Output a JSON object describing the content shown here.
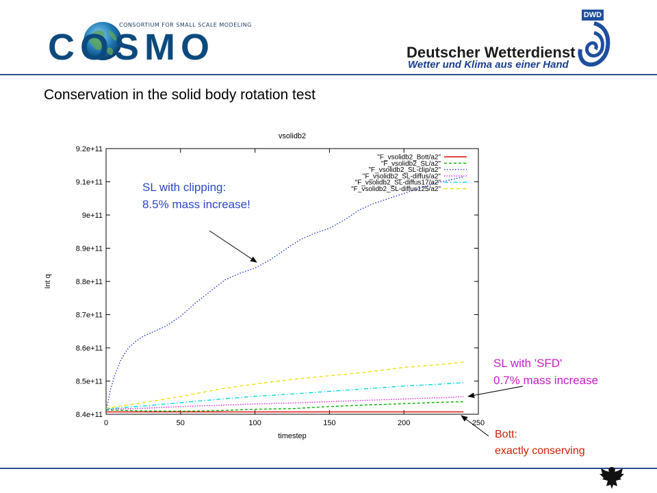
{
  "header": {
    "consortium_text": "CONSORTIUM FOR SMALL SCALE MODELING",
    "cosmo_text": "COSMO",
    "dwd_badge": "DWD",
    "dwd_name": "Deutscher Wetterdienst",
    "dwd_tagline": "Wetter und Klima aus einer Hand",
    "line_color": "#2a4b8d"
  },
  "slide": {
    "title": "Conservation in the solid body rotation test"
  },
  "annotations": {
    "clip_line1": "SL with clipping:",
    "clip_line2": "8.5% mass increase!",
    "sfd_line1": "SL with 'SFD'",
    "sfd_line2": "0.7% mass increase",
    "bott_line1": "Bott:",
    "bott_line2": "exactly conserving",
    "clip_color": "#2b45c4",
    "sfd_color": "#c51bc5",
    "bott_color": "#cc2200"
  },
  "chart_data": {
    "type": "line",
    "title": "vsolidb2",
    "xlabel": "timestep",
    "ylabel": "Int q",
    "xlim": [
      0,
      250
    ],
    "ylim": [
      840000000000,
      920000000000
    ],
    "xticks": [
      0,
      50,
      100,
      150,
      200,
      250
    ],
    "xtick_labels": [
      "0",
      "50",
      "100",
      "150",
      "200",
      "250"
    ],
    "yticks": [
      840000000000,
      850000000000,
      860000000000,
      870000000000,
      880000000000,
      890000000000,
      900000000000,
      910000000000,
      920000000000
    ],
    "ytick_labels": [
      "8.4e+11",
      "8.5e+11",
      "8.6e+11",
      "8.7e+11",
      "8.8e+11",
      "8.9e+11",
      "9e+11",
      "9.1e+11",
      "9.2e+11"
    ],
    "legend_position": "top-right",
    "grid": false,
    "series": [
      {
        "name": "\"F_vsolidb2_Bott/a2\"",
        "color": "#e00000",
        "dash": "",
        "x": [
          0,
          240
        ],
        "y": [
          840700000000,
          840700000000
        ]
      },
      {
        "name": "\"F_vsolidb2_SL/a2\"",
        "color": "#00b000",
        "dash": "4,3",
        "x": [
          0,
          25,
          50,
          75,
          100,
          125,
          150,
          175,
          200,
          225,
          240
        ],
        "y": [
          841300000000,
          841000000000,
          840900000000,
          841100000000,
          841500000000,
          841700000000,
          842300000000,
          842800000000,
          843200000000,
          843600000000,
          843800000000
        ]
      },
      {
        "name": "\"F_vsolidb2_SL-clip/a2\"",
        "color": "#2030d0",
        "dash": "1.5,2.5",
        "x": [
          0,
          3,
          6,
          10,
          15,
          20,
          25,
          30,
          40,
          50,
          60,
          70,
          80,
          90,
          100,
          110,
          120,
          130,
          140,
          150,
          160,
          170,
          180,
          190,
          200,
          210,
          220,
          230,
          240
        ],
        "y": [
          841000000000,
          847500000000,
          852000000000,
          856500000000,
          860000000000,
          862000000000,
          863500000000,
          864500000000,
          866500000000,
          869500000000,
          873500000000,
          877000000000,
          880500000000,
          882500000000,
          884000000000,
          886500000000,
          889500000000,
          892500000000,
          894500000000,
          896000000000,
          898500000000,
          901500000000,
          903500000000,
          905000000000,
          906500000000,
          908000000000,
          909500000000,
          910500000000,
          911500000000
        ]
      },
      {
        "name": "\"F_vsolidb2_SL-diffus/a2\"",
        "color": "#e020e0",
        "dash": "1.5,2",
        "x": [
          0,
          25,
          50,
          75,
          100,
          125,
          150,
          175,
          200,
          225,
          240
        ],
        "y": [
          841500000000,
          841800000000,
          842300000000,
          842700000000,
          843100000000,
          843400000000,
          843800000000,
          844200000000,
          844600000000,
          845000000000,
          845300000000
        ]
      },
      {
        "name": "\"F_vsolidb2_SL-diffus17/a2\"",
        "color": "#00d8e8",
        "dash": "6,3,1.5,3",
        "x": [
          0,
          25,
          50,
          75,
          100,
          125,
          150,
          175,
          200,
          225,
          240
        ],
        "y": [
          841600000000,
          842500000000,
          843500000000,
          844500000000,
          845400000000,
          846100000000,
          846900000000,
          847700000000,
          848500000000,
          849100000000,
          849500000000
        ]
      },
      {
        "name": "\"F_vsolidb2_SL-diffus125/a2\"",
        "color": "#f0e000",
        "dash": "5,4",
        "x": [
          0,
          25,
          50,
          75,
          100,
          125,
          150,
          175,
          200,
          225,
          240
        ],
        "y": [
          841800000000,
          843500000000,
          845300000000,
          847500000000,
          849100000000,
          850500000000,
          851600000000,
          852700000000,
          854100000000,
          855000000000,
          855700000000
        ]
      }
    ]
  }
}
